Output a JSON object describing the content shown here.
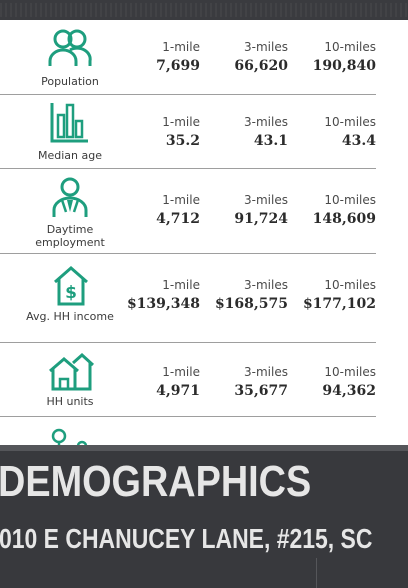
{
  "rows": [
    {
      "label": "Population",
      "icon": "people-icon",
      "radii": [
        "1-mile",
        "3-miles",
        "10-miles"
      ],
      "values": [
        "7,699",
        "66,620",
        "190,840"
      ]
    },
    {
      "label": "Median age",
      "icon": "bar-chart-icon",
      "radii": [
        "1-mile",
        "3-miles",
        "10-miles"
      ],
      "values": [
        "35.2",
        "43.1",
        "43.4"
      ]
    },
    {
      "label": "Daytime employment",
      "icon": "worker-icon",
      "radii": [
        "1-mile",
        "3-miles",
        "10-miles"
      ],
      "values": [
        "4,712",
        "91,724",
        "148,609"
      ]
    },
    {
      "label": "Avg. HH income",
      "icon": "house-dollar-icon",
      "radii": [
        "1-mile",
        "3-miles",
        "10-miles"
      ],
      "values": [
        "$139,348",
        "$168,575",
        "$177,102"
      ]
    },
    {
      "label": "HH units",
      "icon": "houses-icon",
      "radii": [
        "1-mile",
        "3-miles",
        "10-miles"
      ],
      "values": [
        "4,971",
        "35,677",
        "94,362"
      ]
    }
  ],
  "section_title": "DEMOGRAPHICS",
  "address": "010 E CHANUCEY LANE, #215, SC",
  "colors": {
    "icon": "#1e9e7e",
    "background": "#2e2f33",
    "panel": "#ffffff"
  }
}
